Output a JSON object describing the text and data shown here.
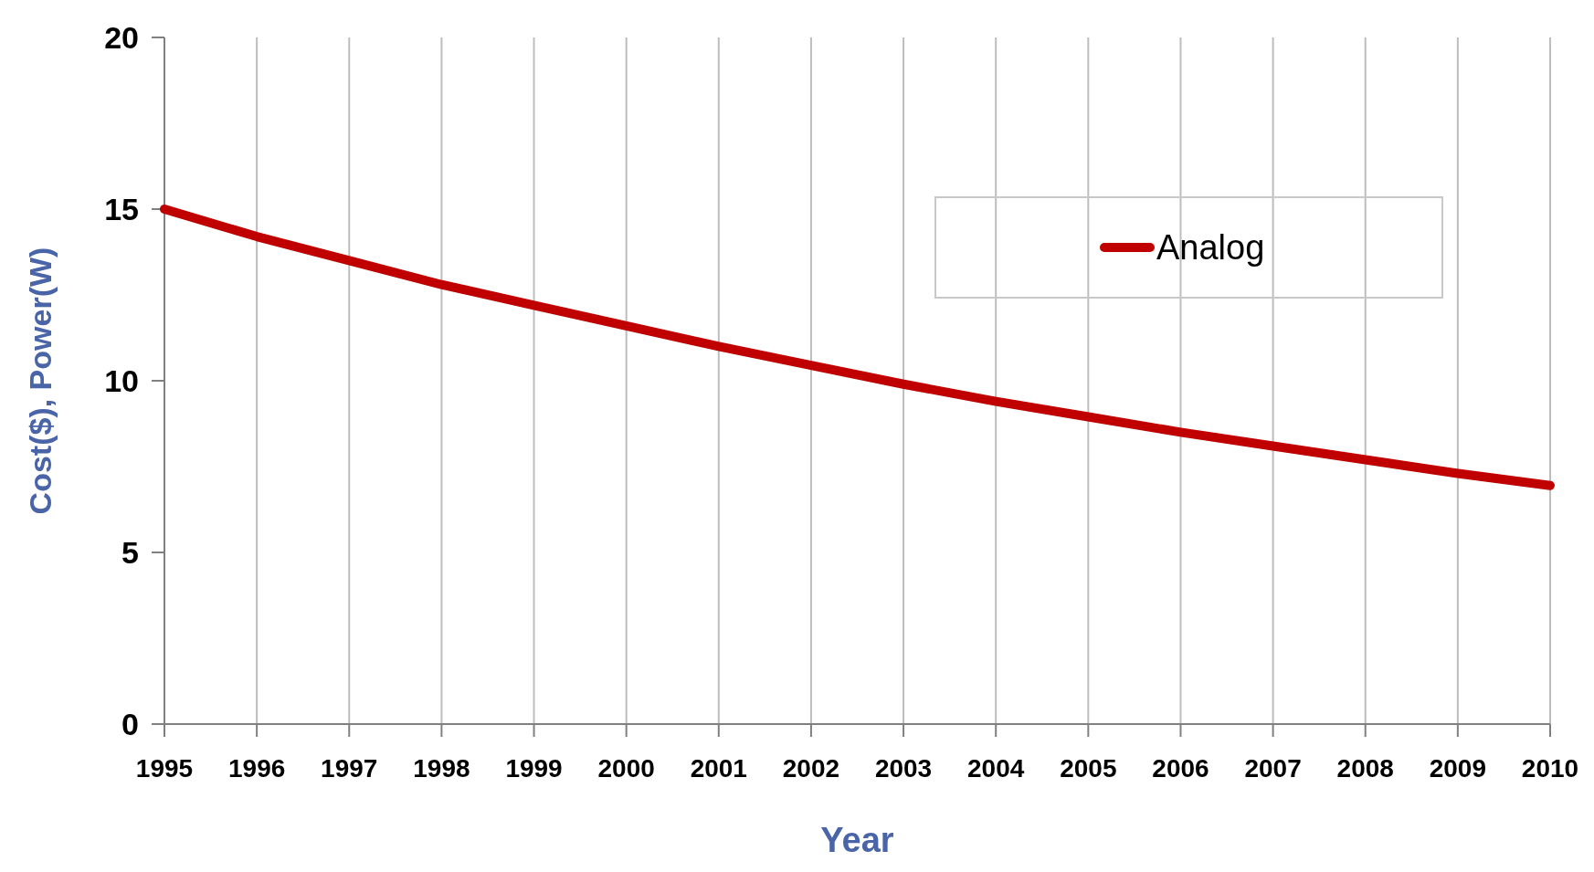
{
  "chart_data": {
    "type": "line",
    "xlabel": "Year",
    "ylabel": "Cost($), Power(W)",
    "x": [
      1995,
      1996,
      1997,
      1998,
      1999,
      2000,
      2001,
      2002,
      2003,
      2004,
      2005,
      2006,
      2007,
      2008,
      2009,
      2010
    ],
    "series": [
      {
        "name": "Analog",
        "color": "#c00000",
        "values": [
          15.0,
          14.2,
          13.5,
          12.8,
          12.2,
          11.6,
          11.0,
          10.45,
          9.9,
          9.4,
          8.95,
          8.5,
          8.1,
          7.7,
          7.3,
          6.95
        ]
      }
    ],
    "xlim": [
      1995,
      2010
    ],
    "xticks": [
      1995,
      1996,
      1997,
      1998,
      1999,
      2000,
      2001,
      2002,
      2003,
      2004,
      2005,
      2006,
      2007,
      2008,
      2009,
      2010
    ],
    "ylim": [
      0,
      20
    ],
    "yticks": [
      0,
      5,
      10,
      15,
      20
    ],
    "grid": "x",
    "legend": "top right",
    "marker": "none",
    "line_style": "solid"
  }
}
